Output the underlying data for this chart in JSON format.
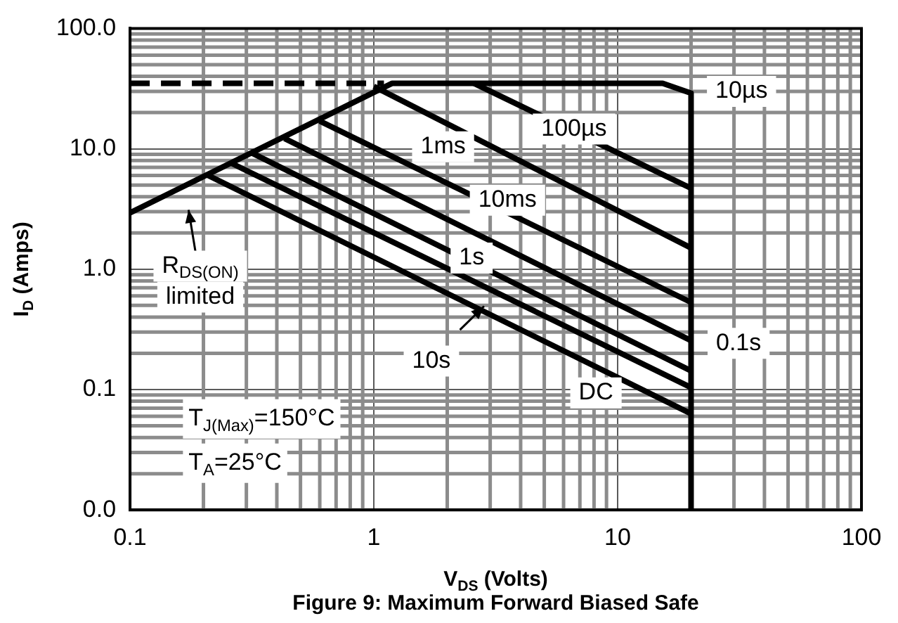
{
  "chart_data": {
    "type": "line",
    "title": "Figure 9: Maximum Forward Biased Safe",
    "xlabel": "V$_{DS}$ (Volts)",
    "ylabel": "I$_{D}$ (Amps)",
    "log": "xy",
    "grid": true,
    "legend": false,
    "marker": "none",
    "xlim": [
      0.1,
      100
    ],
    "ylim": [
      0.01,
      100
    ],
    "xticks": [
      0.1,
      1,
      10,
      100
    ],
    "yticks": [
      {
        "value": 0.01,
        "label": "0.0"
      },
      {
        "value": 0.1,
        "label": "0.1"
      },
      {
        "value": 1,
        "label": "1.0"
      },
      {
        "value": 10,
        "label": "10.0"
      },
      {
        "value": 100,
        "label": "100.0"
      }
    ],
    "series": [
      {
        "color": "#000000",
        "x": [
          0.1,
          1.19,
          15.3,
          20,
          20
        ],
        "values": [
          2.94,
          35,
          35,
          29,
          0.01
        ]
      },
      {
        "color": "#000000",
        "line_style": "dashed",
        "x": [
          0.1,
          1.1
        ],
        "values": [
          35,
          35
        ]
      },
      {
        "color": "#000000",
        "x": [
          2.57,
          20
        ],
        "values": [
          35,
          4.7
        ]
      },
      {
        "color": "#000000",
        "x": [
          1,
          20
        ],
        "values": [
          33,
          1.5
        ]
      },
      {
        "color": "#000000",
        "x": [
          0.6,
          20
        ],
        "values": [
          17,
          0.53
        ]
      },
      {
        "color": "#000000",
        "x": [
          0.43,
          20
        ],
        "values": [
          12.2,
          0.255
        ]
      },
      {
        "color": "#000000",
        "x": [
          0.31,
          20
        ],
        "values": [
          9.4,
          0.143
        ]
      },
      {
        "color": "#000000",
        "x": [
          0.26,
          20
        ],
        "values": [
          7.6,
          0.104
        ]
      },
      {
        "color": "#000000",
        "x": [
          0.206,
          20
        ],
        "values": [
          6.1,
          0.063
        ]
      }
    ],
    "annotations": [
      "10µs",
      "100µs",
      "1ms",
      "10ms",
      "1s",
      "0.1s",
      "10s",
      "DC",
      "R$_{DS(ON)}$ limited",
      "T$_{J(Max)}$=150°C",
      "T$_{A}$=25°C"
    ]
  }
}
